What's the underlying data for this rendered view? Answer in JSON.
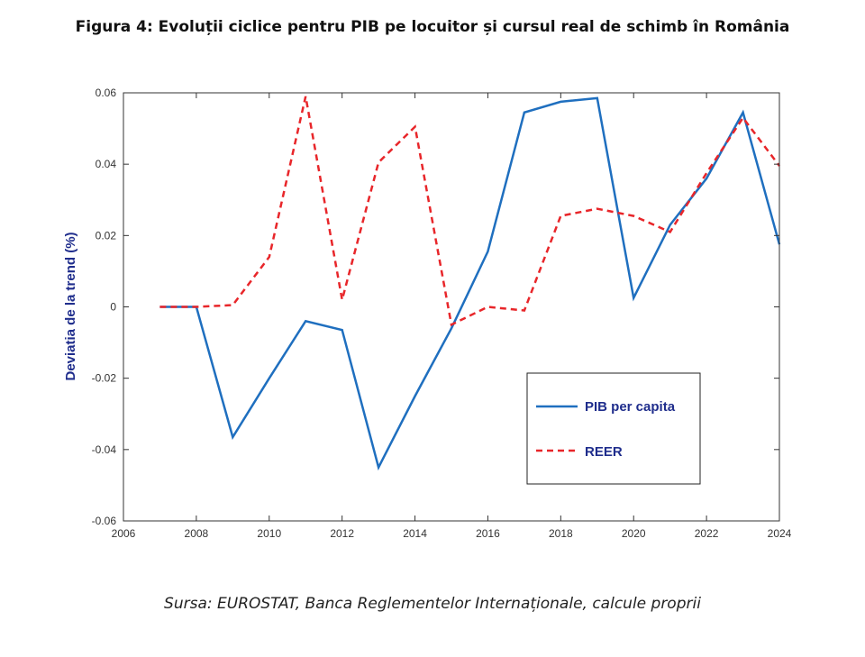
{
  "figure": {
    "title": "Figura 4: Evoluții ciclice pentru PIB pe locuitor și cursul real de schimb în România",
    "source": "Sursa: EUROSTAT, Banca Reglementelor Internaționale, calcule proprii"
  },
  "chart_data": {
    "type": "line",
    "title": "Figura 4: Evoluții ciclice pentru PIB pe locuitor și cursul real de schimb în România",
    "xlabel": "",
    "ylabel": "Deviatia de la trend (%)",
    "xlim": [
      2006,
      2024
    ],
    "ylim": [
      -0.06,
      0.06
    ],
    "xticks": [
      2006,
      2008,
      2010,
      2012,
      2014,
      2016,
      2018,
      2020,
      2022,
      2024
    ],
    "xtick_labels": [
      "2006",
      "2008",
      "2010",
      "2012",
      "2014",
      "2016",
      "2018",
      "2020",
      "2022",
      "2024"
    ],
    "yticks": [
      -0.06,
      -0.04,
      -0.02,
      0,
      0.02,
      0.04,
      0.06
    ],
    "ytick_labels": [
      "-0.06",
      "-0.04",
      "-0.02",
      "0",
      "0.02",
      "0.04",
      "0.06"
    ],
    "grid": false,
    "legend_position": "lower-right",
    "x": [
      2007,
      2008,
      2009,
      2010,
      2011,
      2012,
      2013,
      2014,
      2015,
      2016,
      2017,
      2018,
      2019,
      2020,
      2021,
      2022,
      2023,
      2024
    ],
    "series": [
      {
        "name": "PIB per capita",
        "style": "solid",
        "color": "#1f6fbf",
        "values": [
          0.0,
          0.0,
          -0.0365,
          -0.02,
          -0.004,
          -0.0065,
          -0.045,
          -0.025,
          -0.006,
          0.0155,
          0.0545,
          0.0575,
          0.0585,
          0.0025,
          0.023,
          0.036,
          0.0545,
          0.0175
        ]
      },
      {
        "name": "REER",
        "style": "dashed",
        "color": "#e8262a",
        "values": [
          0.0,
          0.0,
          0.0005,
          0.014,
          0.059,
          0.002,
          0.0405,
          0.0505,
          -0.005,
          0.0,
          -0.001,
          0.0255,
          0.0275,
          0.0255,
          0.021,
          0.0375,
          0.053,
          0.0395
        ]
      }
    ]
  }
}
